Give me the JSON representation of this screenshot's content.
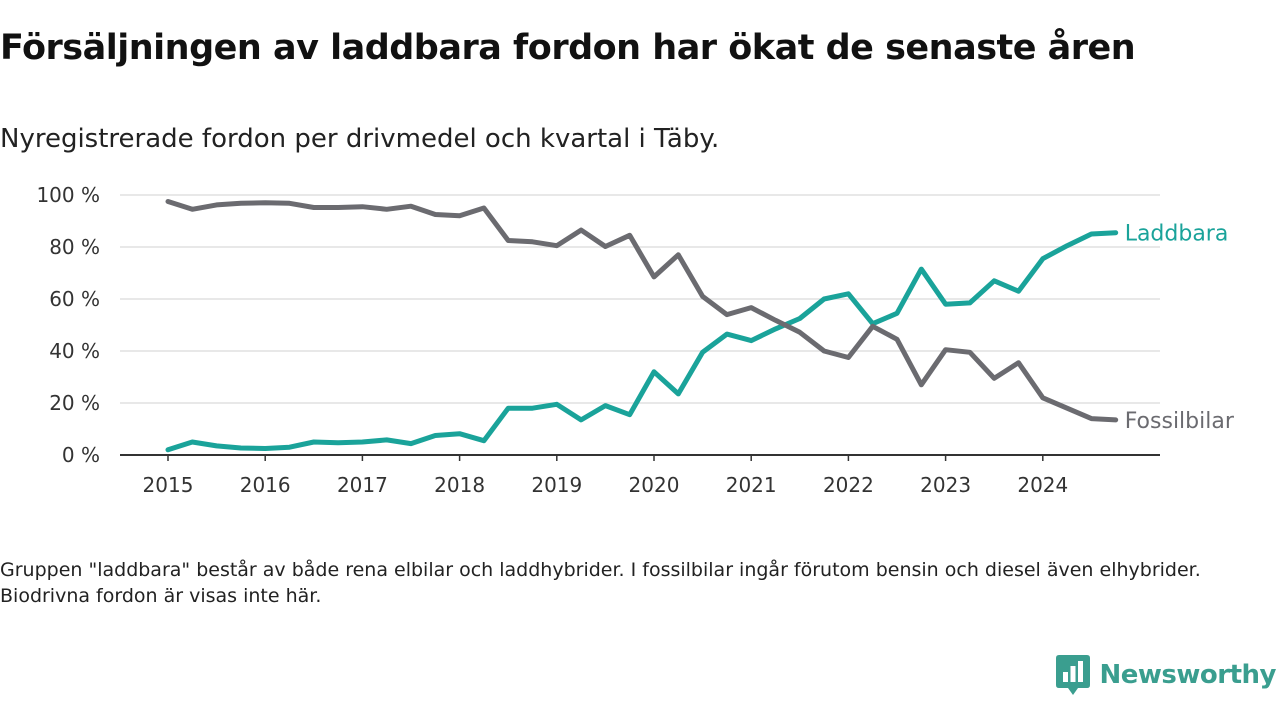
{
  "header": {
    "title": "Försäljningen av laddbara fordon har ökat de senaste åren",
    "subtitle": "Nyregistrerade fordon per drivmedel och kvartal i Täby."
  },
  "footnote": "Gruppen \"laddbara\" består av både rena elbilar och laddhybrider. I fossilbilar ingår förutom bensin och diesel även elhybrider. Biodrivna fordon är visas inte här.",
  "brand": {
    "name": "Newsworthy",
    "color": "#3a9e8f",
    "icon": "newsworthy-logo-icon"
  },
  "chart_data": {
    "type": "line",
    "title": "Försäljningen av laddbara fordon har ökat de senaste åren",
    "subtitle": "Nyregistrerade fordon per drivmedel och kvartal i Täby.",
    "xlabel": "",
    "ylabel": "",
    "x_unit": "quarter",
    "xlim": [
      2015.0,
      2025.0
    ],
    "ylim": [
      0,
      100
    ],
    "y_ticks": [
      0,
      20,
      40,
      60,
      80,
      100
    ],
    "y_tick_labels": [
      "0 %",
      "20 %",
      "40 %",
      "60 %",
      "80 %",
      "100 %"
    ],
    "x_ticks": [
      2015,
      2016,
      2017,
      2018,
      2019,
      2020,
      2021,
      2022,
      2023,
      2024
    ],
    "x_tick_labels": [
      "2015",
      "2016",
      "2017",
      "2018",
      "2019",
      "2020",
      "2021",
      "2022",
      "2023",
      "2024"
    ],
    "grid": true,
    "legend": "inline-right",
    "x": [
      2015.0,
      2015.25,
      2015.5,
      2015.75,
      2016.0,
      2016.25,
      2016.5,
      2016.75,
      2017.0,
      2017.25,
      2017.5,
      2017.75,
      2018.0,
      2018.25,
      2018.5,
      2018.75,
      2019.0,
      2019.25,
      2019.5,
      2019.75,
      2020.0,
      2020.25,
      2020.5,
      2020.75,
      2021.0,
      2021.25,
      2021.5,
      2021.75,
      2022.0,
      2022.25,
      2022.5,
      2022.75,
      2023.0,
      2023.25,
      2023.5,
      2023.75,
      2024.0,
      2024.25,
      2024.5,
      2024.75
    ],
    "series": [
      {
        "name": "Laddbara",
        "color": "#1aa39a",
        "values": [
          2,
          5,
          3.5,
          2.7,
          2.5,
          3,
          5,
          4.7,
          5,
          5.8,
          4.4,
          7.5,
          8.2,
          5.5,
          18,
          18,
          19.5,
          13.5,
          19,
          15.5,
          32,
          23.5,
          39.5,
          46.5,
          44,
          48.5,
          52.5,
          60,
          62,
          50.5,
          54.5,
          71.5,
          58,
          58.5,
          67,
          63,
          75.5,
          80.5,
          85,
          85.5
        ]
      },
      {
        "name": "Fossilbilar",
        "color": "#6b6b70",
        "values": [
          97.5,
          94.5,
          96.2,
          96.8,
          97,
          96.8,
          95.2,
          95.2,
          95.5,
          94.5,
          95.7,
          92.5,
          92,
          95,
          82.5,
          82,
          80.5,
          86.5,
          80.2,
          84.5,
          68.5,
          77,
          61,
          54,
          56.7,
          51.8,
          47.2,
          40,
          37.5,
          49.5,
          44.5,
          27,
          40.5,
          39.5,
          29.5,
          35.5,
          22,
          18,
          14,
          13.5
        ]
      }
    ]
  }
}
